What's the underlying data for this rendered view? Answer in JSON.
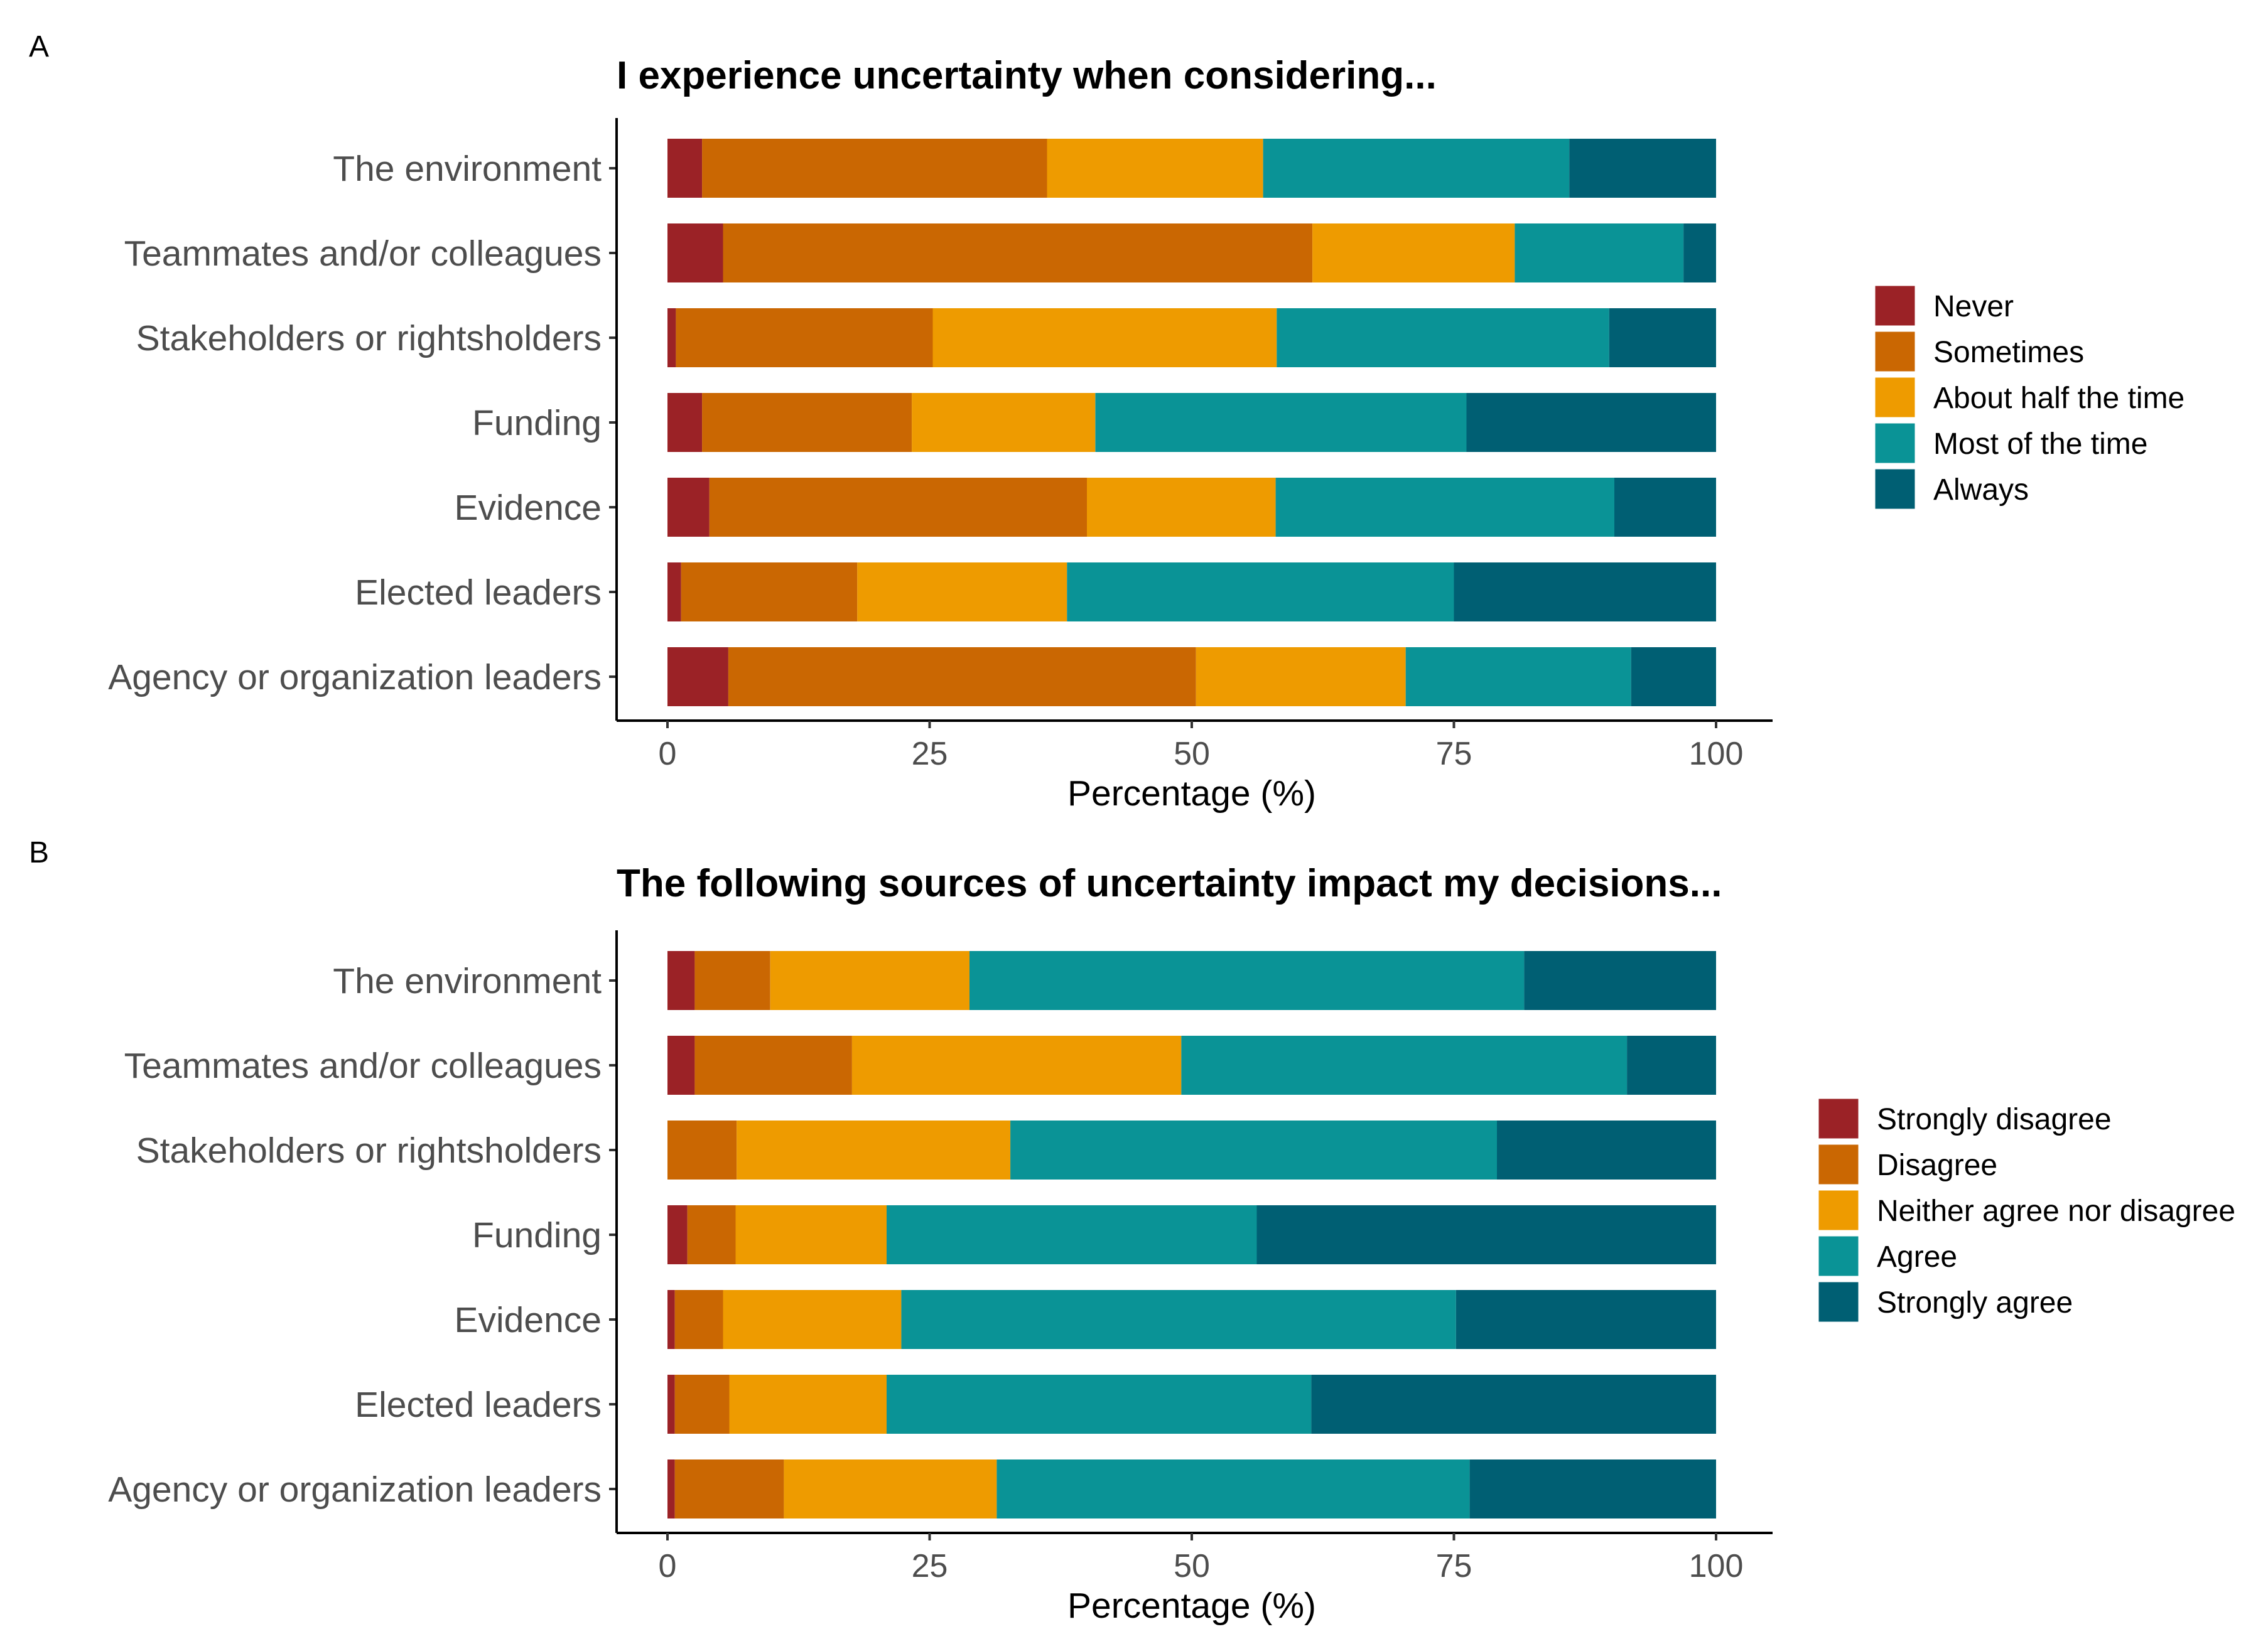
{
  "chart_data": [
    {
      "type": "bar",
      "orientation": "horizontal",
      "stacked": true,
      "panel": "A",
      "title": "I experience uncertainty when considering...",
      "xlabel": "Percentage (%)",
      "ylabel": "",
      "xlim": [
        0,
        100
      ],
      "xticks": [
        "0",
        "25",
        "50",
        "75",
        "100"
      ],
      "categories": [
        "The environment",
        "Teammates and/or colleagues",
        "Stakeholders or rightsholders",
        "Funding",
        "Evidence",
        "Elected leaders",
        "Agency or organization leaders"
      ],
      "series": [
        {
          "name": "Never",
          "color": "#9B2226",
          "values": [
            3.3,
            5.3,
            0.8,
            3.3,
            4.0,
            1.3,
            5.8
          ]
        },
        {
          "name": "Sometimes",
          "color": "#CA6702",
          "values": [
            32.9,
            56.2,
            24.5,
            20.0,
            36.0,
            16.8,
            44.6
          ]
        },
        {
          "name": "About half the time",
          "color": "#EE9B00",
          "values": [
            20.6,
            19.3,
            32.8,
            17.5,
            18.0,
            20.0,
            20.0
          ]
        },
        {
          "name": "Most of the time",
          "color": "#0A9396",
          "values": [
            29.2,
            16.1,
            31.7,
            35.4,
            32.3,
            36.9,
            21.5
          ]
        },
        {
          "name": "Always",
          "color": "#005F73",
          "values": [
            14.0,
            3.1,
            10.2,
            23.8,
            9.7,
            25.0,
            8.1
          ]
        }
      ],
      "legend_position": "right",
      "grid": false
    },
    {
      "type": "bar",
      "orientation": "horizontal",
      "stacked": true,
      "panel": "B",
      "title": "The following sources of uncertainty impact my decisions...",
      "xlabel": "Percentage (%)",
      "ylabel": "",
      "xlim": [
        0,
        100
      ],
      "xticks": [
        "0",
        "25",
        "50",
        "75",
        "100"
      ],
      "categories": [
        "The environment",
        "Teammates and/or colleagues",
        "Stakeholders or rightsholders",
        "Funding",
        "Evidence",
        "Elected leaders",
        "Agency or organization leaders"
      ],
      "series": [
        {
          "name": "Strongly disagree",
          "color": "#9B2226",
          "values": [
            2.6,
            2.6,
            0.0,
            1.9,
            0.7,
            0.7,
            0.7
          ]
        },
        {
          "name": "Disagree",
          "color": "#CA6702",
          "values": [
            7.2,
            15.0,
            6.6,
            4.6,
            4.6,
            5.2,
            10.4
          ]
        },
        {
          "name": "Neither agree nor disagree",
          "color": "#EE9B00",
          "values": [
            19.0,
            31.4,
            26.1,
            14.4,
            17.0,
            15.0,
            20.3
          ]
        },
        {
          "name": "Agree",
          "color": "#0A9396",
          "values": [
            52.9,
            42.5,
            46.4,
            35.3,
            52.9,
            40.5,
            45.1
          ]
        },
        {
          "name": "Strongly agree",
          "color": "#005F73",
          "values": [
            18.3,
            8.5,
            20.9,
            43.8,
            24.8,
            38.6,
            23.5
          ]
        }
      ],
      "legend_position": "right",
      "grid": false
    }
  ]
}
